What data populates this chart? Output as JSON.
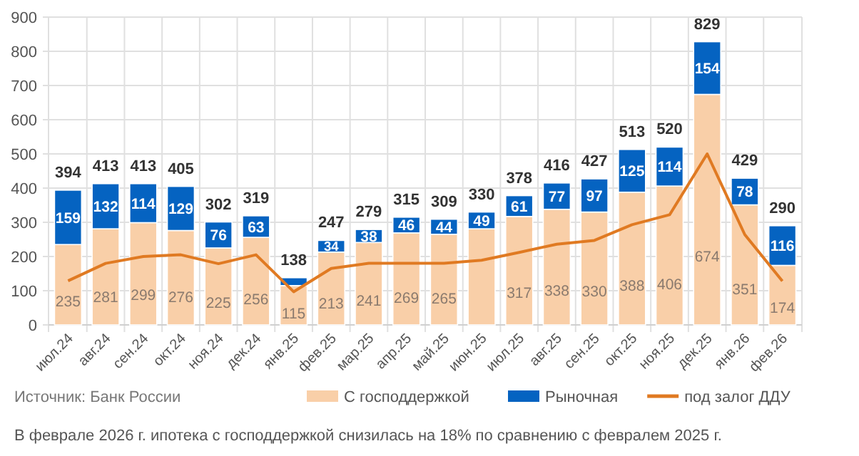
{
  "chart_data": {
    "type": "bar",
    "stacked": true,
    "categories": [
      "июл.24",
      "авг.24",
      "сен.24",
      "окт.24",
      "ноя.24",
      "дек.24",
      "янв.25",
      "фев.25",
      "мар.25",
      "апр.25",
      "май.25",
      "июн.25",
      "июл.25",
      "авг.25",
      "сен.25",
      "окт.25",
      "ноя.25",
      "дек.25",
      "янв.26",
      "фев.26"
    ],
    "series": [
      {
        "name": "С господдержкой",
        "color": "#f9cfa8",
        "values": [
          235,
          281,
          299,
          276,
          225,
          256,
          115,
          213,
          241,
          269,
          265,
          281,
          317,
          338,
          330,
          388,
          406,
          674,
          351,
          174
        ],
        "value_labels": [
          "235",
          "281",
          "299",
          "276",
          "225",
          "256",
          "115",
          "213",
          "241",
          "269",
          "265",
          null,
          "317",
          "338",
          "330",
          "388",
          "406",
          "674",
          "351",
          "174"
        ]
      },
      {
        "name": "Рыночная",
        "color": "#0563c1",
        "values": [
          159,
          132,
          114,
          129,
          76,
          63,
          23,
          34,
          38,
          46,
          44,
          49,
          61,
          77,
          97,
          125,
          114,
          154,
          78,
          116
        ],
        "value_labels": [
          "159",
          "132",
          "114",
          "129",
          "76",
          "63",
          null,
          "34",
          "38",
          "46",
          "44",
          "49",
          "61",
          "77",
          "97",
          "125",
          "114",
          "154",
          "78",
          "116"
        ]
      },
      {
        "name": "под залог ДДУ",
        "type": "line",
        "color": "#e07a22",
        "values": [
          129,
          180,
          200,
          205,
          179,
          205,
          97,
          165,
          180,
          180,
          180,
          189,
          212,
          236,
          247,
          293,
          322,
          500,
          264,
          128
        ]
      }
    ],
    "totals": [
      "394",
      "413",
      "413",
      "405",
      "302",
      "319",
      "138",
      "247",
      "279",
      "315",
      "309",
      "330",
      "378",
      "416",
      "427",
      "513",
      "520",
      "829",
      "429",
      "290"
    ],
    "ylim": [
      0,
      900
    ],
    "yticks": [
      0,
      100,
      200,
      300,
      400,
      500,
      600,
      700,
      800,
      900
    ],
    "grid": true,
    "legend": "bottom",
    "marker": "none",
    "annotations": [
      "Источник: Банк России",
      "В феврале 2026 г. ипотека с господдержкой снизилась на 18% по сравнению с февралем 2025 г."
    ]
  }
}
